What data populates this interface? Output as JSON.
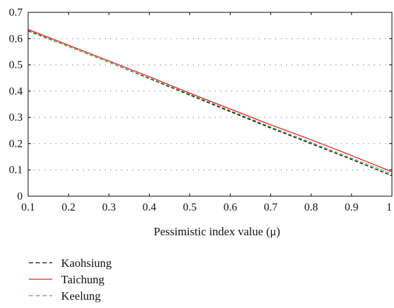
{
  "chart_data": {
    "type": "line",
    "title": "",
    "xlabel": "Pessimistic index value (μ)",
    "ylabel": "",
    "xlim": [
      0.1,
      1
    ],
    "ylim": [
      0,
      0.7
    ],
    "x_ticks": [
      "0.1",
      "0.2",
      "0.3",
      "0.4",
      "0.5",
      "0.6",
      "0.7",
      "0.8",
      "0.9",
      "1"
    ],
    "y_ticks": [
      "0",
      "0.1",
      "0.2",
      "0.3",
      "0.4",
      "0.5",
      "0.6",
      "0.7"
    ],
    "x_tick_values": [
      0.1,
      0.2,
      0.3,
      0.4,
      0.5,
      0.6,
      0.7,
      0.8,
      0.9,
      1
    ],
    "y_tick_values": [
      0,
      0.1,
      0.2,
      0.3,
      0.4,
      0.5,
      0.6,
      0.7
    ],
    "grid": "horizontal dotted",
    "legend_position": "below",
    "x": [
      0.1,
      0.2,
      0.3,
      0.4,
      0.5,
      0.6,
      0.7,
      0.8,
      0.9,
      1
    ],
    "series": [
      {
        "name": "Kaohsiung",
        "color": "#000000",
        "dash": "dashed",
        "values": [
          0.63,
          0.57,
          0.51,
          0.448,
          0.385,
          0.322,
          0.26,
          0.2,
          0.14,
          0.078
        ]
      },
      {
        "name": "Taichung",
        "color": "#e31a1c",
        "dash": "solid",
        "values": [
          0.635,
          0.575,
          0.515,
          0.455,
          0.392,
          0.332,
          0.272,
          0.215,
          0.155,
          0.093
        ]
      },
      {
        "name": "Keelung",
        "color": "#4daf4a",
        "dash": "dashed",
        "values": [
          0.628,
          0.57,
          0.51,
          0.45,
          0.388,
          0.326,
          0.264,
          0.205,
          0.145,
          0.085
        ]
      }
    ]
  }
}
